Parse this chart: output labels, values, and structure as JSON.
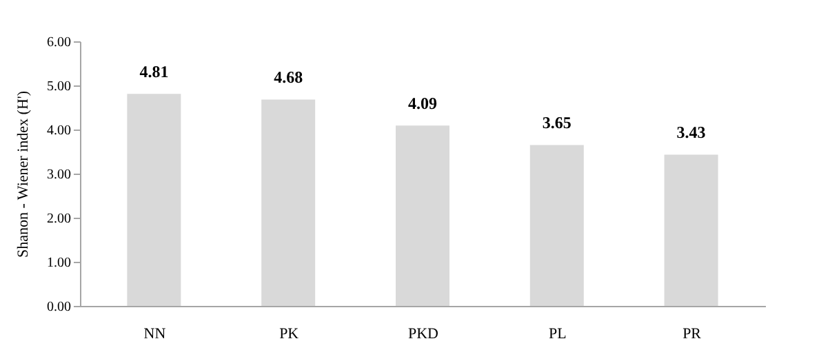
{
  "chart_data": {
    "type": "bar",
    "categories": [
      "NN",
      "PK",
      "PKD",
      "PL",
      "PR"
    ],
    "values": [
      4.81,
      4.68,
      4.09,
      3.65,
      3.43
    ],
    "color": "#d9d9d9",
    "ylabel": "Shanon - Wiener index (H')",
    "ylim": [
      0,
      6
    ],
    "yticks": [
      {
        "value": 0,
        "label": "0.00"
      },
      {
        "value": 1,
        "label": "1.00"
      },
      {
        "value": 2,
        "label": "2.00"
      },
      {
        "value": 3,
        "label": "3.00"
      },
      {
        "value": 4,
        "label": "4.00"
      },
      {
        "value": 5,
        "label": "5.00"
      },
      {
        "value": 6,
        "label": "6.00"
      }
    ],
    "data_labels": true,
    "grid": false
  }
}
